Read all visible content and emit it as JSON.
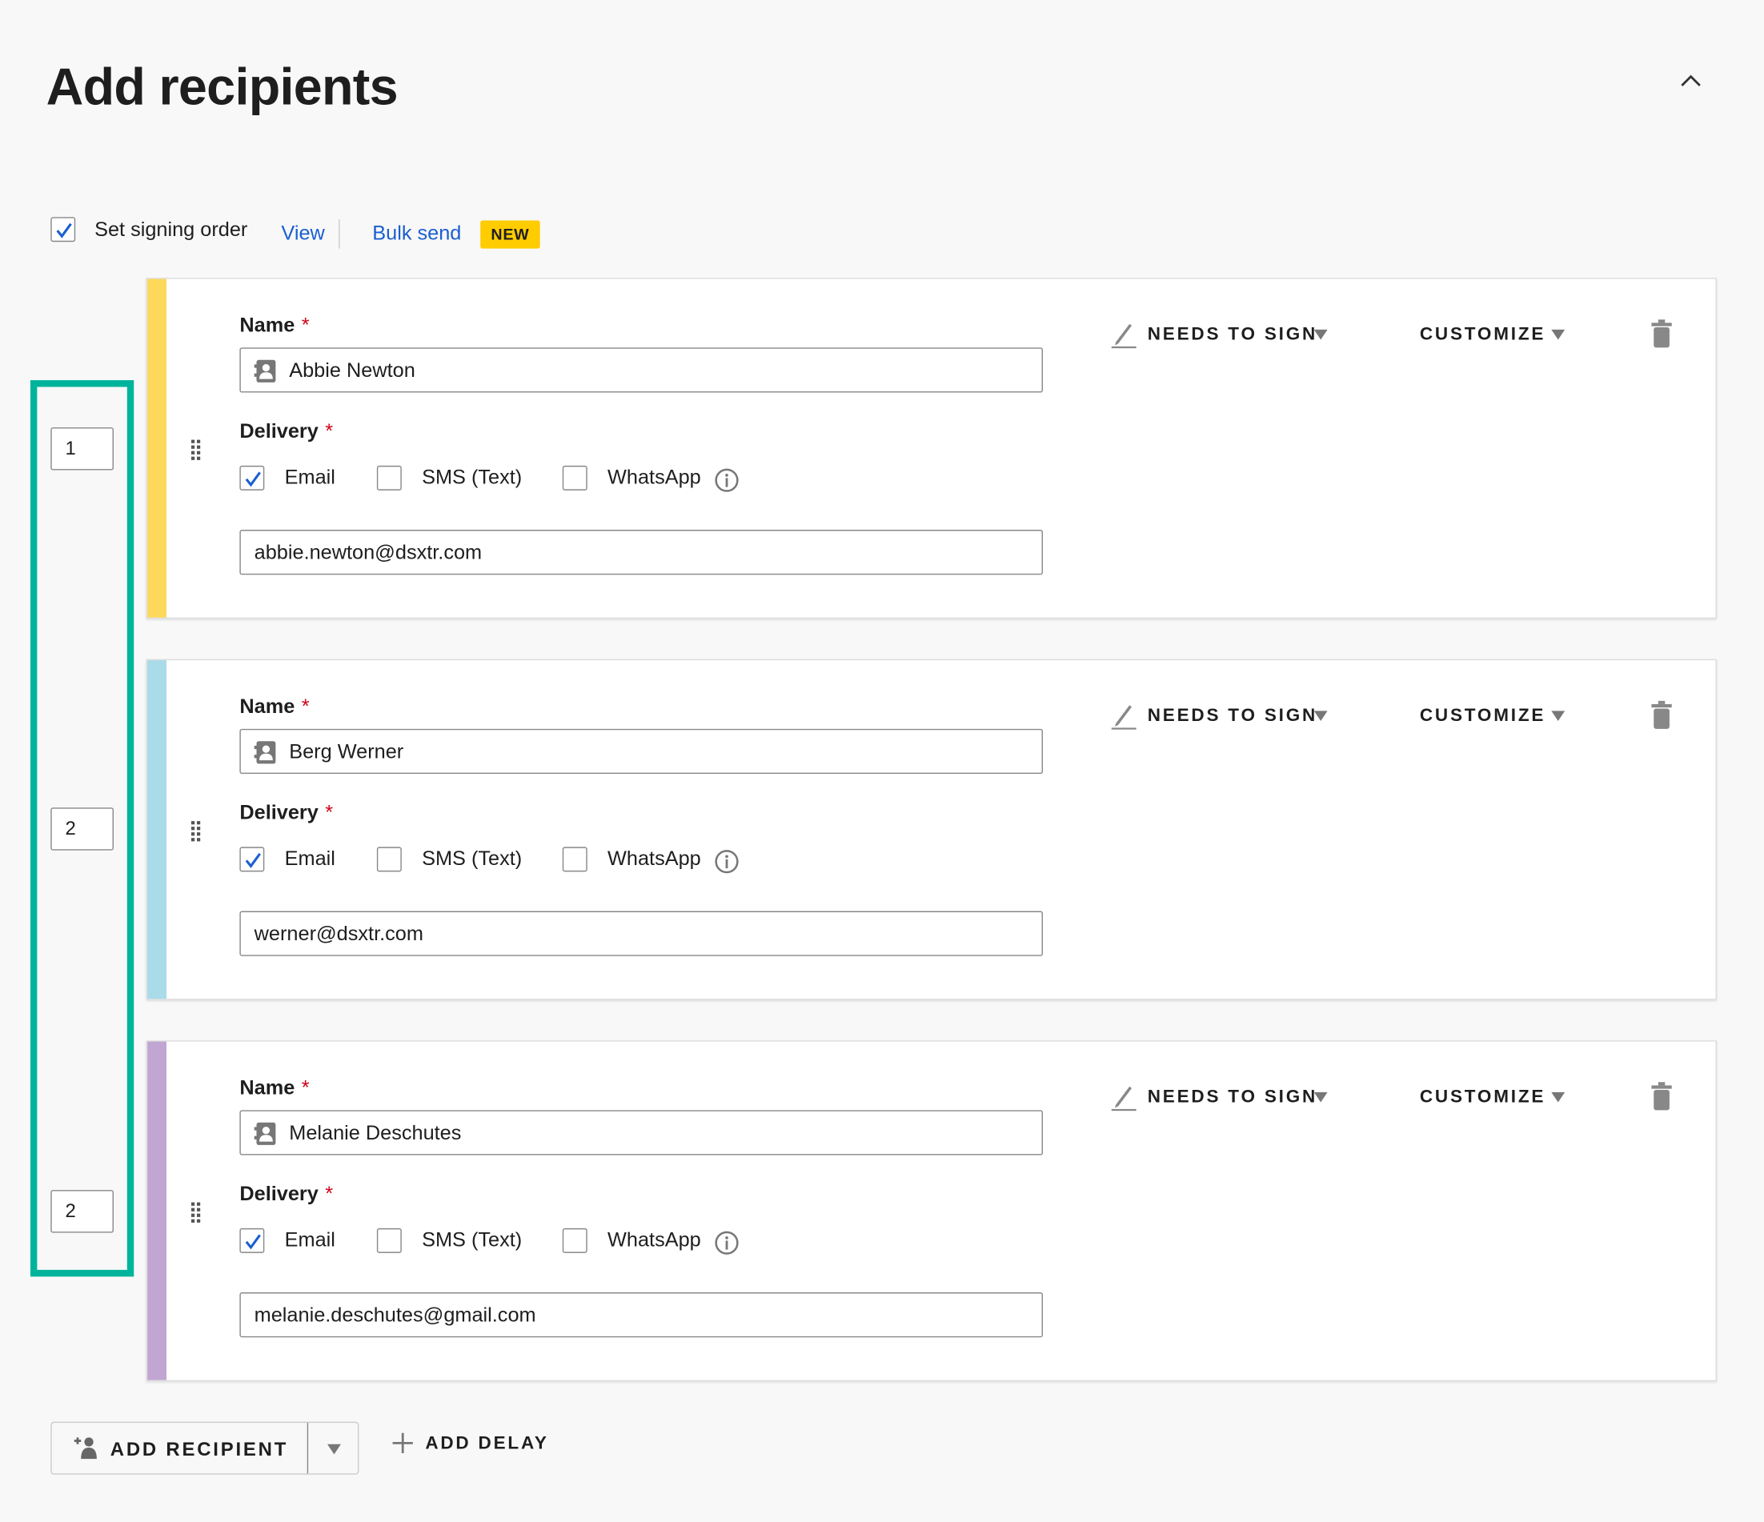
{
  "header": {
    "title": "Add recipients",
    "collapse_icon": "chevron-up-icon"
  },
  "options": {
    "signing_order_label": "Set signing order",
    "signing_order_checked": true,
    "view_label": "View",
    "bulk_send_label": "Bulk send",
    "new_badge": "NEW"
  },
  "colors": {
    "accent": "#1a5fd0",
    "highlight": "#00b49c",
    "badge": "#ffcc00"
  },
  "recipients": [
    {
      "order": "1",
      "color": "#fdd85a",
      "name_label": "Name",
      "name": "Abbie Newton",
      "delivery_label": "Delivery",
      "email_label": "Email",
      "sms_label": "SMS (Text)",
      "whatsapp_label": "WhatsApp",
      "email_checked": true,
      "sms_checked": false,
      "whatsapp_checked": false,
      "email": "abbie.newton@dsxtr.com",
      "action": "NEEDS TO SIGN",
      "customize": "CUSTOMIZE"
    },
    {
      "order": "2",
      "color": "#a9dbe9",
      "name_label": "Name",
      "name": "Berg Werner",
      "delivery_label": "Delivery",
      "email_label": "Email",
      "sms_label": "SMS (Text)",
      "whatsapp_label": "WhatsApp",
      "email_checked": true,
      "sms_checked": false,
      "whatsapp_checked": false,
      "email": "werner@dsxtr.com",
      "action": "NEEDS TO SIGN",
      "customize": "CUSTOMIZE"
    },
    {
      "order": "2",
      "color": "#c1a6d3",
      "name_label": "Name",
      "name": "Melanie Deschutes",
      "delivery_label": "Delivery",
      "email_label": "Email",
      "sms_label": "SMS (Text)",
      "whatsapp_label": "WhatsApp",
      "email_checked": true,
      "sms_checked": false,
      "whatsapp_checked": false,
      "email": "melanie.deschutes@gmail.com",
      "action": "NEEDS TO SIGN",
      "customize": "CUSTOMIZE"
    }
  ],
  "footer": {
    "add_recipient_label": "ADD RECIPIENT",
    "add_delay_label": "ADD DELAY"
  }
}
